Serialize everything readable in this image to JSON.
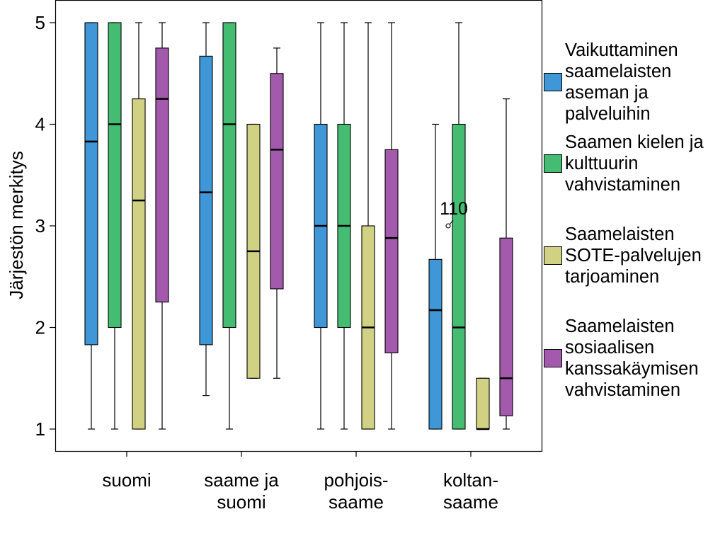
{
  "chart_data": {
    "type": "boxplot",
    "ylabel": "Järjestön merkitys",
    "xlabel": "",
    "ylim": [
      0.75,
      5.2
    ],
    "yticks": [
      1,
      2,
      3,
      4,
      5
    ],
    "grid": false,
    "legend_position": "right",
    "categories": [
      {
        "label": [
          "suomi"
        ]
      },
      {
        "label": [
          "saame ja",
          "suomi"
        ]
      },
      {
        "label": [
          "pohjois-",
          "saame"
        ]
      },
      {
        "label": [
          "koltan-",
          "saame"
        ]
      }
    ],
    "series": [
      {
        "name": "Vaikuttaminen saamelaisten aseman ja palveluihin",
        "legend_lines": [
          "Vaikuttaminen",
          "saamelaisten",
          "aseman ja",
          "palveluihin"
        ],
        "color": "#3f97d8",
        "boxes": [
          {
            "min": 1,
            "q1": 1.83,
            "median": 3.83,
            "q3": 5,
            "max": 5
          },
          {
            "min": 1.33,
            "q1": 1.83,
            "median": 3.33,
            "q3": 4.67,
            "max": 5
          },
          {
            "min": 1,
            "q1": 2,
            "median": 3,
            "q3": 4,
            "max": 5
          },
          {
            "min": 1,
            "q1": 1,
            "median": 2.17,
            "q3": 2.67,
            "max": 4
          }
        ]
      },
      {
        "name": "Saamen kielen ja kulttuurin vahvistaminen",
        "legend_lines": [
          "Saamen kielen ja",
          "kulttuurin",
          "vahvistaminen"
        ],
        "color": "#44bd72",
        "boxes": [
          {
            "min": 1,
            "q1": 2,
            "median": 4,
            "q3": 5,
            "max": 5
          },
          {
            "min": 1,
            "q1": 2,
            "median": 4,
            "q3": 5,
            "max": 5
          },
          {
            "min": 1,
            "q1": 2,
            "median": 3,
            "q3": 4,
            "max": 5
          },
          {
            "min": 1,
            "q1": 1,
            "median": 2,
            "q3": 4,
            "max": 5
          }
        ]
      },
      {
        "name": "Saamelaisten SOTE-palvelujen tarjoaminen",
        "legend_lines": [
          "Saamelaisten",
          "SOTE-palvelujen",
          "tarjoaminen"
        ],
        "color": "#d1d184",
        "boxes": [
          {
            "min": 1,
            "q1": 1,
            "median": 3.25,
            "q3": 4.25,
            "max": 5
          },
          {
            "min": 1.5,
            "q1": 1.5,
            "median": 2.75,
            "q3": 4,
            "max": 4
          },
          {
            "min": 1,
            "q1": 1,
            "median": 2,
            "q3": 3,
            "max": 5
          },
          {
            "min": 1,
            "q1": 1,
            "median": 1,
            "q3": 1.5,
            "max": 1.5
          }
        ]
      },
      {
        "name": "Saamelaisten sosiaalisen kanssakäymisen vahvistaminen",
        "legend_lines": [
          "Saamelaisten",
          "sosiaalisen",
          "kanssakäymisen",
          "vahvistaminen"
        ],
        "color": "#a35aac",
        "boxes": [
          {
            "min": 1,
            "q1": 2.25,
            "median": 4.25,
            "q3": 4.75,
            "max": 5
          },
          {
            "min": 1.5,
            "q1": 2.38,
            "median": 3.75,
            "q3": 4.5,
            "max": 4.75
          },
          {
            "min": 1,
            "q1": 1.75,
            "median": 2.88,
            "q3": 3.75,
            "max": 5
          },
          {
            "min": 1,
            "q1": 1.13,
            "median": 1.5,
            "q3": 2.88,
            "max": 4.25
          }
        ]
      }
    ],
    "outliers": [
      {
        "series": 0,
        "category": 3,
        "value": 3,
        "label": "110"
      }
    ]
  }
}
